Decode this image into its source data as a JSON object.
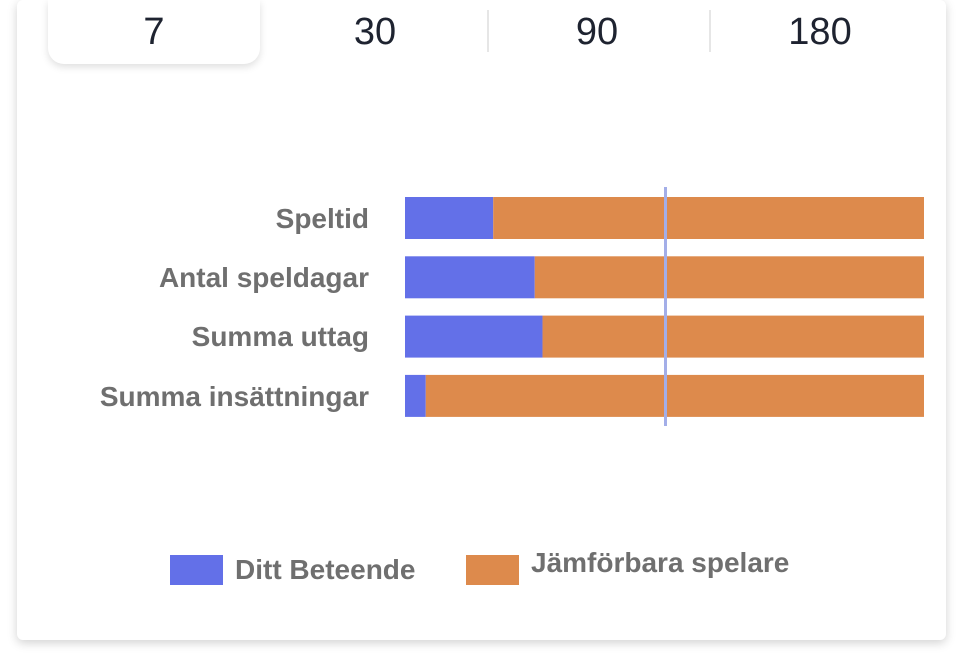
{
  "period_tabs": [
    {
      "label": "7",
      "selected": true
    },
    {
      "label": "30",
      "selected": false
    },
    {
      "label": "90",
      "selected": false
    },
    {
      "label": "180",
      "selected": false
    }
  ],
  "chart_data": {
    "type": "bar",
    "orientation": "horizontal",
    "stacked": true,
    "categories": [
      "Speltid",
      "Antal speldagar",
      "Summa uttag",
      "Summa insättningar"
    ],
    "series": [
      {
        "name": "Ditt Beteende",
        "color": "#6370e8",
        "values": [
          17,
          25,
          26.5,
          4
        ]
      },
      {
        "name": "Jämförbara spelare",
        "color": "#dd8a4c",
        "values": [
          83,
          75,
          73.5,
          96
        ]
      }
    ],
    "xlim": [
      0,
      100
    ],
    "reference_line": {
      "value": 50,
      "color": "#a3aee8"
    },
    "legend_position": "bottom",
    "grid": false
  },
  "legend": {
    "items": [
      {
        "label": "Ditt Beteende",
        "color": "#6370e8"
      },
      {
        "label": "Jämförbara spelare",
        "color": "#dd8a4c"
      }
    ]
  }
}
